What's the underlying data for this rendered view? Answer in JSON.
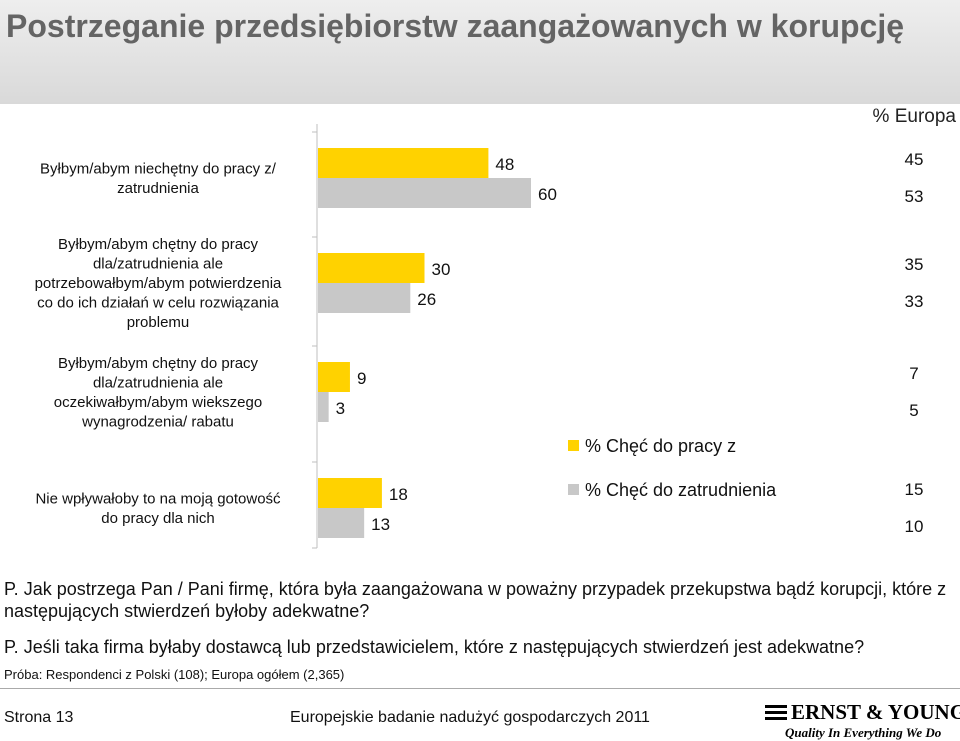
{
  "title": "Postrzeganie przedsiębiorstw zaangażowanych w korupcję",
  "europe_header": "% Europa",
  "chart_data": {
    "type": "bar",
    "orientation": "horizontal",
    "categories": [
      [
        "Byłbym/abym niechętny do pracy z/",
        "zatrudnienia"
      ],
      [
        "Byłbym/abym chętny do pracy",
        "dla/zatrudnienia ale",
        "potrzebowałbym/abym potwierdzenia",
        "co do ich działań w celu rozwiązania",
        "problemu"
      ],
      [
        "Byłbym/abym chętny do pracy",
        "dla/zatrudnienia ale",
        "oczekiwałbym/abym wiekszego",
        "wynagrodzenia/ rabatu"
      ],
      [
        "Nie wpływałoby to na moją gotowość",
        "do pracy dla nich"
      ]
    ],
    "series": [
      {
        "name": "% Chęć do pracy z",
        "color": "#FFD200",
        "values": [
          48,
          30,
          9,
          18
        ]
      },
      {
        "name": "% Chęć do zatrudnienia",
        "color": "#C8C8C8",
        "values": [
          60,
          26,
          3,
          13
        ]
      }
    ],
    "europe_values": [
      {
        "work": "45",
        "employ": "53"
      },
      {
        "work": "35",
        "employ": "33"
      },
      {
        "work": "7",
        "employ": "5"
      },
      {
        "work": "15",
        "employ": "10"
      }
    ],
    "xlim": [
      0,
      100
    ],
    "grid": false,
    "legend_placement": "middle-right"
  },
  "questions": [
    "P. Jak postrzega Pan / Pani firmę, która była zaangażowana w poważny przypadek przekupstwa bądź korupcji, które z następujących stwierdzeń byłoby adekwatne?",
    "P. Jeśli taka firma byłaby dostawcą lub przedstawicielem, które z następujących stwierdzeń jest adekwatne?"
  ],
  "sample": "Próba: Respondenci z Polski (108); Europa ogółem (2,365)",
  "footer": {
    "page": "Strona 13",
    "report": "Europejskie badanie nadużyć gospodarczych 2011",
    "logo_name": "ERNST & YOUNG",
    "logo_tagline": "Quality In Everything We Do"
  }
}
